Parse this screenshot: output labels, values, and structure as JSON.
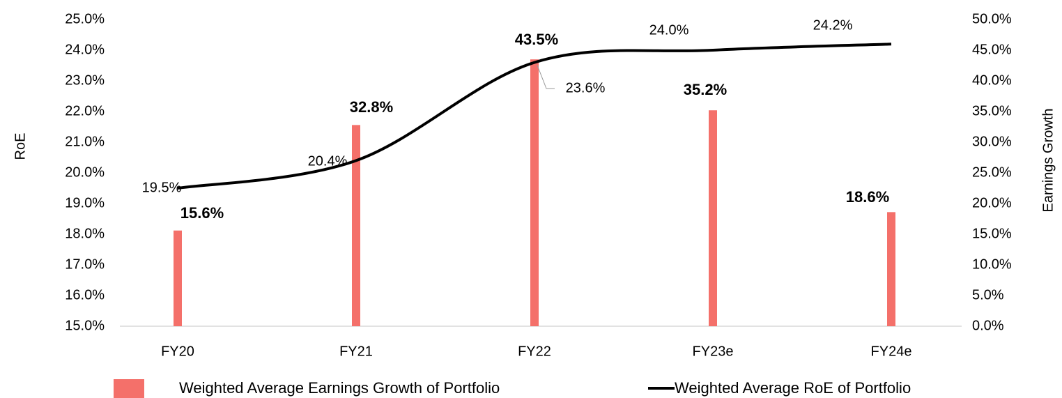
{
  "chart_data": {
    "type": "bar",
    "categories": [
      "FY20",
      "FY21",
      "FY22",
      "FY23e",
      "FY24e"
    ],
    "series": [
      {
        "name": "Weighted Average Earnings Growth of Portfolio",
        "type": "bar",
        "color": "#f4706a",
        "axis": "y2",
        "values": [
          15.6,
          32.8,
          43.5,
          35.2,
          18.6
        ],
        "value_labels": [
          "15.6%",
          "32.8%",
          "43.5%",
          "35.2%",
          "18.6%"
        ]
      },
      {
        "name": "Weighted Average RoE of Portfolio",
        "type": "line",
        "color": "#000000",
        "values": [
          19.5,
          20.4,
          23.6,
          24.0,
          24.2
        ],
        "value_labels": [
          "19.5%",
          "20.4%",
          "23.6%",
          "24.0%",
          "24.2%"
        ]
      }
    ],
    "ylabel": "RoE",
    "y2label": "Earnings Growth",
    "ylim": [
      15,
      25
    ],
    "yticks": [
      {
        "value": 15,
        "label": "15.0%"
      },
      {
        "value": 16,
        "label": "16.0%"
      },
      {
        "value": 17,
        "label": "17.0%"
      },
      {
        "value": 18,
        "label": "18.0%"
      },
      {
        "value": 19,
        "label": "19.0%"
      },
      {
        "value": 20,
        "label": "20.0%"
      },
      {
        "value": 21,
        "label": "21.0%"
      },
      {
        "value": 22,
        "label": "22.0%"
      },
      {
        "value": 23,
        "label": "23.0%"
      },
      {
        "value": 24,
        "label": "24.0%"
      },
      {
        "value": 25,
        "label": "25.0%"
      }
    ],
    "y2lim": [
      0,
      50
    ],
    "y2ticks": [
      {
        "value": 0,
        "label": "0.0%"
      },
      {
        "value": 5,
        "label": "5.0%"
      },
      {
        "value": 10,
        "label": "10.0%"
      },
      {
        "value": 15,
        "label": "15.0%"
      },
      {
        "value": 20,
        "label": "20.0%"
      },
      {
        "value": 25,
        "label": "25.0%"
      },
      {
        "value": 30,
        "label": "30.0%"
      },
      {
        "value": 35,
        "label": "35.0%"
      },
      {
        "value": 40,
        "label": "40.0%"
      },
      {
        "value": 45,
        "label": "45.0%"
      },
      {
        "value": 50,
        "label": "50.0%"
      }
    ],
    "legend": "bottom",
    "grid": false
  }
}
